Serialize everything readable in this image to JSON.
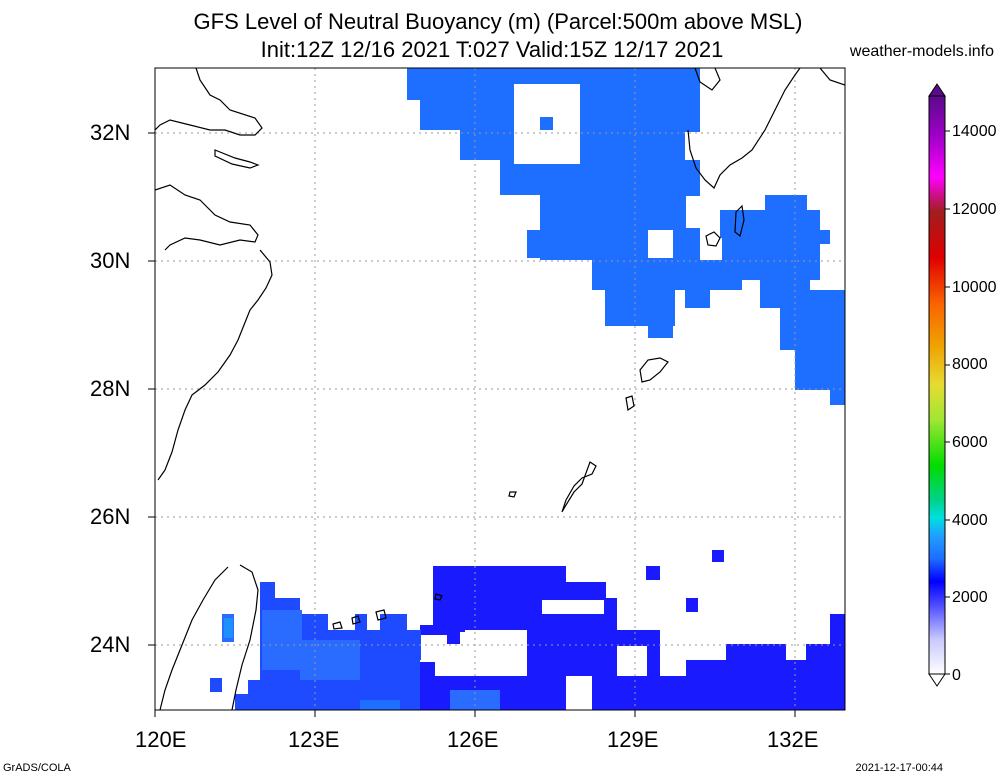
{
  "title": {
    "line1": "GFS Level of Neutral Buoyancy (m) (Parcel:500m above MSL)",
    "line2": "Init:12Z 12/16 2021 T:027 Valid:15Z 12/17 2021"
  },
  "site": "weather-models.info",
  "axes": {
    "lat_labels": [
      "32N",
      "30N",
      "28N",
      "26N",
      "24N"
    ],
    "lon_labels": [
      "120E",
      "123E",
      "126E",
      "129E",
      "132E"
    ]
  },
  "colorbar": {
    "labels": [
      "0",
      "2000",
      "4000",
      "6000",
      "8000",
      "10000",
      "12000",
      "14000"
    ]
  },
  "footer": {
    "left": "GrADS/COLA",
    "right": "2021-12-17-00:44"
  },
  "colors": {
    "deep_blue": "#1a1aff",
    "mid_blue": "#1e4bff",
    "light_blue": "#1e6eff",
    "sky_blue": "#2090ff"
  }
}
